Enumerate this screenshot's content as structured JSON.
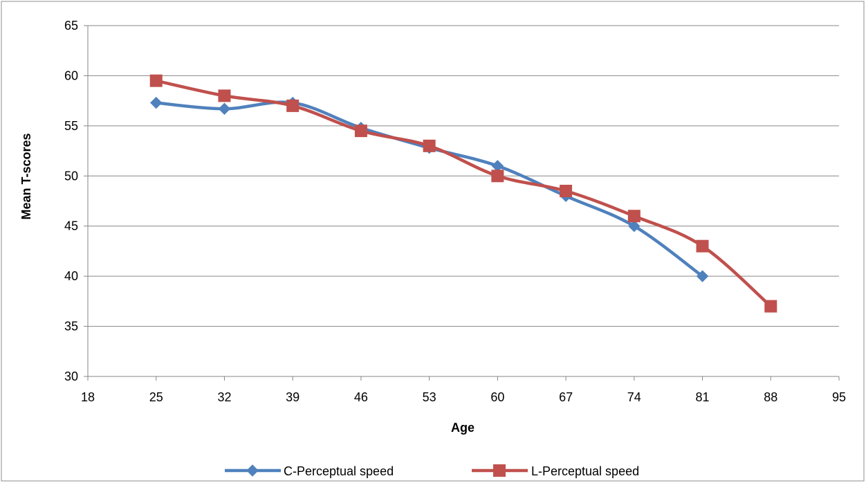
{
  "chart_data": {
    "type": "line",
    "title": "",
    "xlabel": "Age",
    "ylabel": "Mean T-scores",
    "xlim": [
      18,
      95
    ],
    "ylim": [
      30,
      65
    ],
    "x_ticks": [
      18,
      25,
      32,
      39,
      46,
      53,
      60,
      67,
      74,
      81,
      88,
      95
    ],
    "y_ticks": [
      30,
      35,
      40,
      45,
      50,
      55,
      60,
      65
    ],
    "grid": "horizontal",
    "legend_position": "bottom",
    "smooth": true,
    "series": [
      {
        "name": "C-Perceptual speed",
        "color": "#4f81bd",
        "marker": "diamond",
        "x": [
          25,
          32,
          39,
          46,
          53,
          60,
          67,
          74,
          81
        ],
        "y": [
          57.3,
          56.7,
          57.3,
          54.8,
          52.8,
          51.0,
          48.0,
          45.0,
          40.0
        ]
      },
      {
        "name": "L-Perceptual speed",
        "color": "#c0504d",
        "marker": "square",
        "x": [
          25,
          32,
          39,
          46,
          53,
          60,
          67,
          74,
          81,
          88
        ],
        "y": [
          59.5,
          58.0,
          57.0,
          54.5,
          53.0,
          50.0,
          48.5,
          46.0,
          43.0,
          37.0
        ]
      }
    ]
  }
}
